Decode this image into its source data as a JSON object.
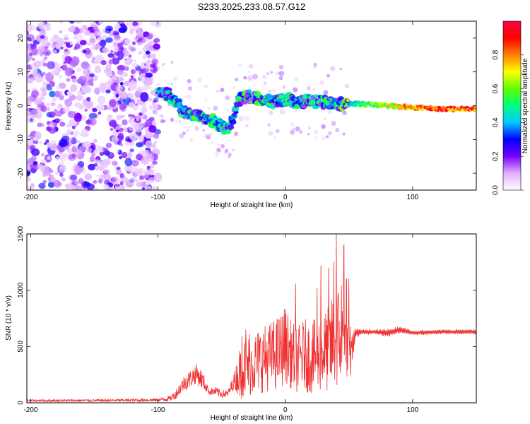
{
  "title": "S233.2025.233.08.57.G12",
  "chart_data": [
    {
      "type": "heatmap",
      "xlabel": "Height of straight line (km)",
      "ylabel": "Frequency (Hz)",
      "xlim": [
        -203,
        150
      ],
      "ylim": [
        -25,
        25
      ],
      "xticks": [
        -200,
        -100,
        0,
        100
      ],
      "yticks": [
        -20,
        -10,
        0,
        10,
        20
      ],
      "xtick_labels": [
        "-200",
        "-100",
        "0",
        "100"
      ],
      "ytick_labels": [
        "-20",
        "-10",
        "0",
        "10",
        "20"
      ],
      "colorbar": {
        "label": "Normalized spectral amplitude",
        "range": [
          0,
          1
        ],
        "ticks": [
          0.0,
          0.2,
          0.4,
          0.6,
          0.8
        ],
        "tick_labels": [
          "0.0",
          "0.2",
          "0.4",
          "0.6",
          "0.8"
        ],
        "colors": [
          "#ffffff",
          "#e0b0ff",
          "#7a00ff",
          "#0000ff",
          "#00c8ff",
          "#00ff80",
          "#60ff00",
          "#ffff00",
          "#ff8000",
          "#ff0000",
          "#ff0040"
        ]
      },
      "ridge": {
        "x": [
          -100,
          -90,
          -80,
          -70,
          -60,
          -55,
          -50,
          -45,
          -40,
          -35,
          -30,
          -20,
          -10,
          0,
          10,
          20,
          30,
          40,
          50,
          60,
          80,
          100,
          120,
          150
        ],
        "y": [
          4,
          3,
          -2,
          -3,
          -4,
          -5,
          -6,
          -7,
          -2,
          2,
          3,
          2,
          1,
          2,
          1,
          1.5,
          1,
          0.5,
          0.5,
          0.5,
          0,
          -0.5,
          -1,
          -1
        ],
        "amplitude": [
          0.3,
          0.35,
          0.3,
          0.35,
          0.35,
          0.3,
          0.35,
          0.3,
          0.3,
          0.35,
          0.4,
          0.4,
          0.35,
          0.35,
          0.3,
          0.35,
          0.35,
          0.35,
          0.45,
          0.55,
          0.7,
          0.85,
          0.95,
          0.9
        ]
      }
    },
    {
      "type": "line",
      "xlabel": "Height of straight line (km)",
      "ylabel": "SNR (10 * v/v)",
      "xlim": [
        -203,
        150
      ],
      "ylim": [
        0,
        1500
      ],
      "xticks": [
        -200,
        -100,
        0,
        100
      ],
      "yticks": [
        0,
        500,
        1000,
        1500
      ],
      "xtick_labels": [
        "-200",
        "-100",
        "0",
        "100"
      ],
      "ytick_labels": [
        "0",
        "500",
        "1000",
        "1500"
      ],
      "series": [
        {
          "name": "SNR",
          "color": "#ee3030",
          "x": [
            -203,
            -150,
            -100,
            -90,
            -85,
            -80,
            -75,
            -70,
            -65,
            -60,
            -55,
            -50,
            -45,
            -40,
            -35,
            -30,
            -25,
            -20,
            -15,
            -10,
            -5,
            0,
            5,
            10,
            15,
            20,
            25,
            30,
            35,
            40,
            45,
            50,
            52,
            55,
            60,
            70,
            80,
            90,
            100,
            120,
            150
          ],
          "values": [
            20,
            20,
            25,
            40,
            90,
            170,
            210,
            260,
            200,
            100,
            100,
            80,
            80,
            200,
            280,
            320,
            350,
            380,
            400,
            420,
            450,
            520,
            420,
            380,
            430,
            400,
            420,
            450,
            480,
            600,
            550,
            430,
            450,
            620,
            630,
            630,
            620,
            650,
            620,
            630,
            630
          ],
          "amplitude": [
            10,
            12,
            15,
            25,
            50,
            70,
            80,
            90,
            80,
            30,
            40,
            40,
            30,
            80,
            250,
            280,
            280,
            300,
            300,
            320,
            330,
            350,
            300,
            300,
            320,
            330,
            330,
            350,
            400,
            500,
            400,
            300,
            200,
            40,
            25,
            20,
            35,
            30,
            20,
            20,
            20
          ],
          "peaks": [
            {
              "x": 40,
              "y": 1500
            },
            {
              "x": 46,
              "y": 1400
            },
            {
              "x": 38,
              "y": 1250
            },
            {
              "x": 34,
              "y": 1200
            },
            {
              "x": 28,
              "y": 1220
            },
            {
              "x": 48,
              "y": 1100
            },
            {
              "x": 8,
              "y": 1060
            },
            {
              "x": 44,
              "y": 1040
            },
            {
              "x": 25,
              "y": 1020
            },
            {
              "x": 50,
              "y": 1100
            },
            {
              "x": -31,
              "y": 650
            },
            {
              "x": -28,
              "y": 610
            },
            {
              "x": -34,
              "y": 590
            }
          ]
        }
      ]
    }
  ]
}
